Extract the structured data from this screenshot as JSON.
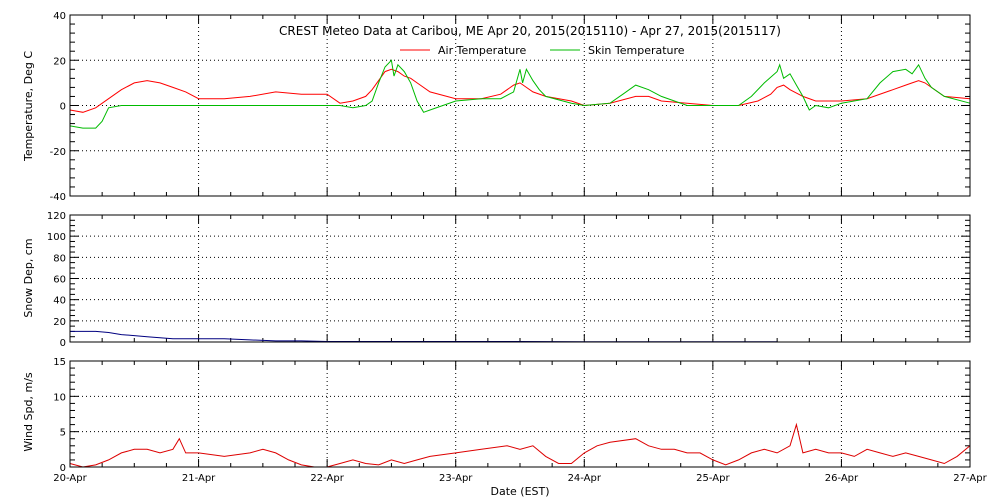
{
  "chart_data": [
    {
      "type": "line",
      "title": "CREST Meteo Data at Caribou, ME   Apr 20, 2015(2015110) - Apr 27, 2015(2015117)",
      "ylabel": "Temperature, Deg C",
      "xlabel": "",
      "ylim": [
        -40,
        40
      ],
      "yticks": [
        -40,
        -20,
        0,
        20,
        40
      ],
      "xlim_days": [
        0,
        7
      ],
      "grid": true,
      "legend_position": "top-center",
      "series": [
        {
          "name": "Air Temperature",
          "color": "#ff0000",
          "x": [
            0,
            0.1,
            0.2,
            0.3,
            0.4,
            0.5,
            0.6,
            0.7,
            0.8,
            0.9,
            1.0,
            1.2,
            1.4,
            1.6,
            1.8,
            2.0,
            2.1,
            2.2,
            2.3,
            2.35,
            2.4,
            2.45,
            2.5,
            2.55,
            2.6,
            2.65,
            2.7,
            2.8,
            3.0,
            3.2,
            3.35,
            3.4,
            3.45,
            3.5,
            3.55,
            3.6,
            3.7,
            3.9,
            4.0,
            4.2,
            4.4,
            4.5,
            4.6,
            4.8,
            5.0,
            5.2,
            5.35,
            5.45,
            5.5,
            5.55,
            5.6,
            5.7,
            5.8,
            5.9,
            6.0,
            6.2,
            6.4,
            6.5,
            6.55,
            6.6,
            6.65,
            6.7,
            6.8,
            7.0
          ],
          "y": [
            -2,
            -3,
            -1,
            3,
            7,
            10,
            11,
            10,
            8,
            6,
            3,
            3,
            4,
            6,
            5,
            5,
            1,
            2,
            4,
            7,
            11,
            15,
            16,
            15,
            13,
            12,
            10,
            6,
            3,
            3,
            5,
            7,
            9,
            10,
            8,
            6,
            4,
            2,
            0,
            1,
            4,
            4,
            2,
            1,
            0,
            0,
            2,
            5,
            8,
            9,
            7,
            4,
            2,
            2,
            2,
            3,
            7,
            9,
            10,
            11,
            10,
            8,
            4,
            3
          ]
        },
        {
          "name": "Skin Temperature",
          "color": "#00bb00",
          "x": [
            0,
            0.1,
            0.2,
            0.25,
            0.3,
            0.4,
            0.5,
            0.6,
            0.8,
            1.0,
            1.2,
            1.4,
            1.6,
            1.8,
            2.0,
            2.1,
            2.2,
            2.3,
            2.35,
            2.4,
            2.45,
            2.5,
            2.52,
            2.55,
            2.6,
            2.65,
            2.7,
            2.75,
            2.8,
            3.0,
            3.2,
            3.35,
            3.45,
            3.5,
            3.52,
            3.55,
            3.6,
            3.65,
            3.7,
            3.9,
            4.0,
            4.2,
            4.3,
            4.4,
            4.5,
            4.6,
            4.8,
            5.0,
            5.2,
            5.3,
            5.4,
            5.5,
            5.52,
            5.55,
            5.6,
            5.65,
            5.7,
            5.75,
            5.8,
            5.9,
            6.0,
            6.2,
            6.3,
            6.4,
            6.5,
            6.55,
            6.6,
            6.65,
            6.7,
            6.8,
            7.0
          ],
          "y": [
            -9,
            -10,
            -10,
            -7,
            -1,
            0,
            0,
            0,
            0,
            0,
            0,
            0,
            0,
            0,
            0,
            0,
            -1,
            0,
            2,
            10,
            17,
            20,
            13,
            18,
            15,
            10,
            2,
            -3,
            -2,
            2,
            3,
            3,
            6,
            16,
            10,
            16,
            11,
            7,
            4,
            1,
            0,
            1,
            5,
            9,
            7,
            4,
            0,
            0,
            0,
            4,
            10,
            15,
            18,
            12,
            14,
            9,
            4,
            -2,
            0,
            -1,
            1,
            3,
            10,
            15,
            16,
            14,
            18,
            12,
            8,
            4,
            1
          ]
        }
      ]
    },
    {
      "type": "line",
      "title": "",
      "ylabel": "Snow Dep, cm",
      "xlabel": "",
      "ylim": [
        0,
        120
      ],
      "yticks": [
        0,
        20,
        40,
        60,
        80,
        100,
        120
      ],
      "xlim_days": [
        0,
        7
      ],
      "grid": true,
      "series": [
        {
          "name": "",
          "color": "#000080",
          "x": [
            0,
            0.1,
            0.2,
            0.3,
            0.4,
            0.5,
            0.6,
            0.7,
            0.8,
            1.0,
            1.2,
            1.4,
            1.6,
            1.8,
            2.0,
            2.2,
            2.5,
            3.0,
            3.5,
            4.0,
            4.5,
            5.0,
            5.5
          ],
          "y": [
            10,
            10,
            10,
            9,
            7,
            6,
            5,
            4,
            3,
            3,
            3,
            2,
            1,
            1,
            0.5,
            0.5,
            0.5,
            0.5,
            0.5,
            0.3,
            0.3,
            0.2,
            0.2
          ]
        }
      ]
    },
    {
      "type": "line",
      "title": "",
      "ylabel": "Wind Spd, m/s",
      "xlabel": "Date (EST)",
      "ylim": [
        0,
        15
      ],
      "yticks": [
        0,
        5,
        10,
        15
      ],
      "xlim_days": [
        0,
        7
      ],
      "xticks": [
        "20-Apr",
        "21-Apr",
        "22-Apr",
        "23-Apr",
        "24-Apr",
        "25-Apr",
        "26-Apr",
        "27-Apr"
      ],
      "grid": true,
      "series": [
        {
          "name": "",
          "color": "#dd0000",
          "x": [
            0,
            0.1,
            0.2,
            0.3,
            0.4,
            0.5,
            0.6,
            0.7,
            0.8,
            0.85,
            0.9,
            1.0,
            1.2,
            1.4,
            1.5,
            1.6,
            1.7,
            1.8,
            1.9,
            2.0,
            2.1,
            2.2,
            2.3,
            2.4,
            2.5,
            2.6,
            2.7,
            2.8,
            3.0,
            3.2,
            3.4,
            3.5,
            3.6,
            3.7,
            3.8,
            3.9,
            4.0,
            4.1,
            4.2,
            4.4,
            4.5,
            4.6,
            4.7,
            4.8,
            4.9,
            5.0,
            5.1,
            5.2,
            5.3,
            5.4,
            5.5,
            5.6,
            5.65,
            5.7,
            5.8,
            5.9,
            6.0,
            6.1,
            6.2,
            6.3,
            6.4,
            6.5,
            6.6,
            6.7,
            6.8,
            6.9,
            7.0
          ],
          "y": [
            0.5,
            0,
            0.3,
            1,
            2,
            2.5,
            2.5,
            2,
            2.5,
            4,
            2,
            2,
            1.5,
            2,
            2.5,
            2,
            1,
            0.3,
            0,
            0,
            0.5,
            1,
            0.5,
            0.3,
            1,
            0.5,
            1,
            1.5,
            2,
            2.5,
            3,
            2.5,
            3,
            1.5,
            0.5,
            0.5,
            2,
            3,
            3.5,
            4,
            3,
            2.5,
            2.5,
            2,
            2,
            1,
            0.3,
            1,
            2,
            2.5,
            2,
            3,
            6,
            2,
            2.5,
            2,
            2,
            1.5,
            2.5,
            2,
            1.5,
            2,
            1.5,
            1,
            0.5,
            1.5,
            3
          ]
        }
      ]
    }
  ]
}
